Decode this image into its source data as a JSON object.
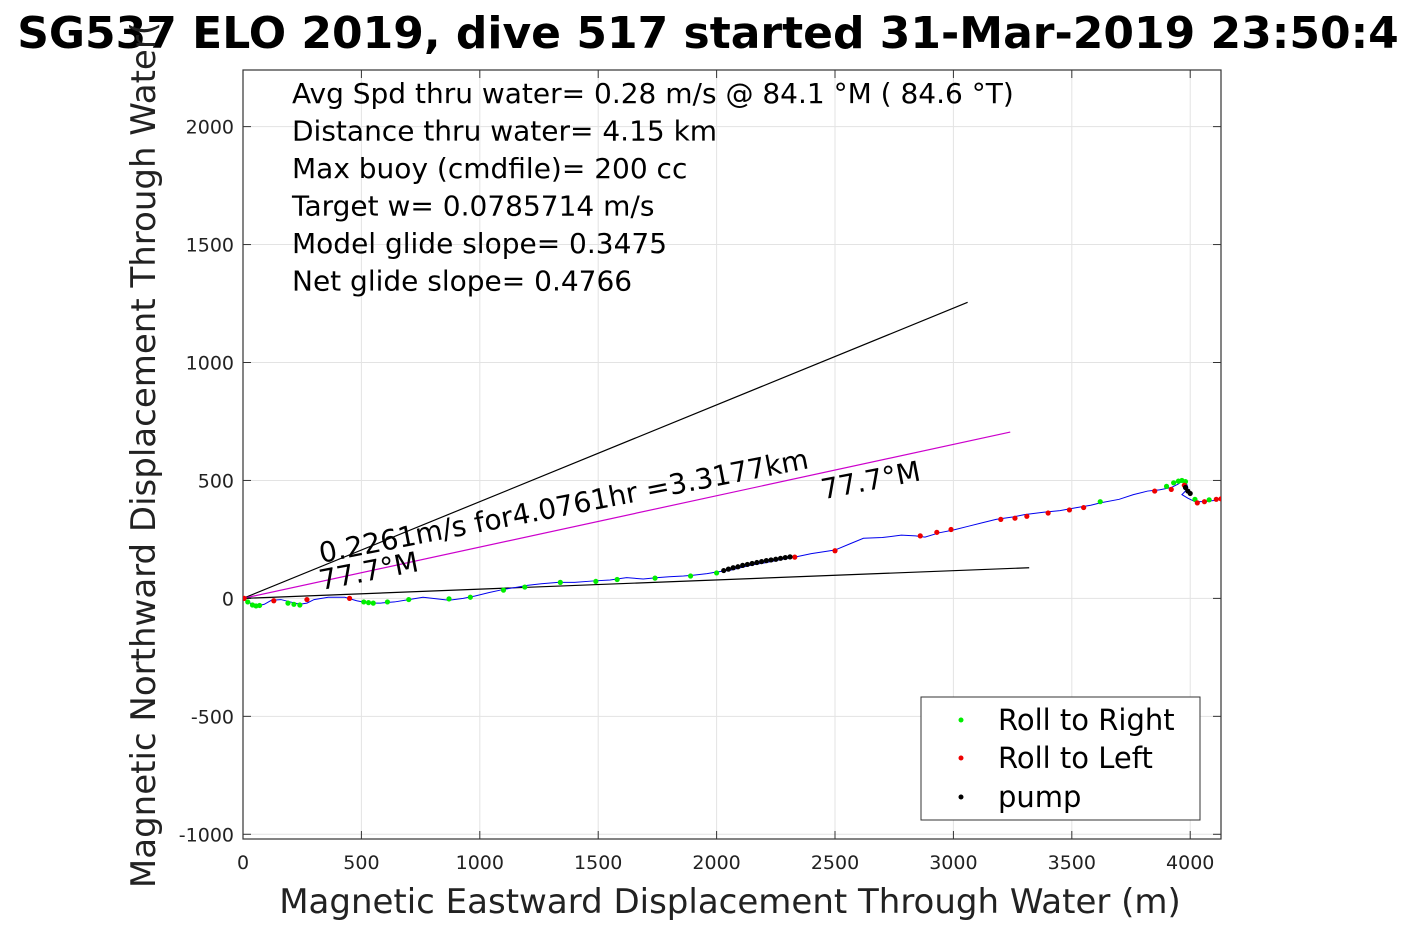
{
  "chart_data": {
    "type": "line",
    "title": "SG537 ELO 2019, dive 517 started 31-Mar-2019 23:50:4",
    "xlabel": "Magnetic Eastward Displacement Through Water (m)",
    "ylabel": "Magnetic Northward Displacement Through Water(",
    "xlim": [
      0,
      4130
    ],
    "ylim": [
      -1020,
      2240
    ],
    "xticks": [
      0,
      500,
      1000,
      1500,
      2000,
      2500,
      3000,
      3500,
      4000
    ],
    "yticks": [
      -1000,
      -500,
      0,
      500,
      1000,
      1500,
      2000
    ],
    "grid": true,
    "info_text": [
      "Avg Spd thru water=  0.28 m/s @  84.1 °M ( 84.6 °T)",
      "Distance thru water=  4.15 km",
      "Max buoy (cmdfile)= 200 cc",
      "Target w= 0.0785714 m/s",
      "Model glide slope= 0.3475",
      "Net glide slope= 0.4766"
    ],
    "annotations": [
      {
        "text": "0.2261m/s for4.0761hr =3.3177km",
        "x": 330,
        "y": 150,
        "rotation_deg": 11
      },
      {
        "text": "77.7°M",
        "x": 330,
        "y": 35,
        "rotation_deg": 11
      },
      {
        "text": "77.7°M",
        "x": 2450,
        "y": 420,
        "rotation_deg": 11
      }
    ],
    "reference_lines": [
      {
        "name": "upper",
        "color": "#000000",
        "x": [
          0,
          3060
        ],
        "y": [
          0,
          1255
        ]
      },
      {
        "name": "current",
        "color": "#cc00cc",
        "x": [
          0,
          3240
        ],
        "y": [
          0,
          705
        ]
      },
      {
        "name": "lower",
        "color": "#000000",
        "x": [
          0,
          3320
        ],
        "y": [
          0,
          130
        ]
      }
    ],
    "track": {
      "color": "#0000ee",
      "x": [
        0,
        30,
        60,
        90,
        120,
        160,
        200,
        240,
        270,
        300,
        360,
        430,
        480,
        530,
        580,
        640,
        700,
        760,
        820,
        870,
        930,
        980,
        1040,
        1100,
        1160,
        1200,
        1260,
        1330,
        1400,
        1480,
        1550,
        1620,
        1690,
        1750,
        1800,
        1860,
        1900,
        1960,
        2000,
        2060,
        2100,
        2150,
        2200,
        2250,
        2300,
        2330,
        2400,
        2500,
        2560,
        2620,
        2700,
        2780,
        2840,
        2880,
        2940,
        3000,
        3060,
        3120,
        3180,
        3250,
        3300,
        3380,
        3450,
        3520,
        3580,
        3620,
        3700,
        3760,
        3820,
        3870,
        3920,
        3950,
        3970,
        3985,
        3990,
        3975,
        3965,
        3990,
        4020,
        4060,
        4100,
        4130
      ],
      "y": [
        0,
        -20,
        -32,
        -25,
        -8,
        -5,
        -15,
        -25,
        -20,
        -5,
        5,
        5,
        -10,
        -20,
        -20,
        -15,
        -5,
        5,
        -2,
        -8,
        0,
        10,
        25,
        38,
        48,
        55,
        62,
        68,
        68,
        74,
        78,
        88,
        82,
        88,
        92,
        95,
        98,
        105,
        112,
        120,
        130,
        142,
        150,
        160,
        170,
        175,
        190,
        205,
        230,
        255,
        258,
        268,
        265,
        260,
        278,
        290,
        305,
        320,
        335,
        345,
        355,
        365,
        372,
        385,
        395,
        405,
        420,
        440,
        455,
        460,
        470,
        485,
        500,
        485,
        470,
        450,
        440,
        425,
        410,
        410,
        415,
        420
      ]
    },
    "series": [
      {
        "name": "Roll to Right",
        "color": "#00ee00",
        "x": [
          20,
          40,
          55,
          70,
          190,
          215,
          240,
          510,
          530,
          550,
          610,
          700,
          870,
          960,
          1100,
          1190,
          1340,
          1490,
          1580,
          1740,
          1890,
          2000,
          3620,
          3900,
          3930,
          3950,
          3965,
          3980,
          4020,
          4080
        ],
        "y": [
          -15,
          -28,
          -32,
          -30,
          -20,
          -25,
          -28,
          -15,
          -18,
          -20,
          -15,
          -5,
          -2,
          5,
          35,
          48,
          68,
          72,
          80,
          86,
          95,
          108,
          410,
          475,
          490,
          497,
          500,
          495,
          420,
          418
        ]
      },
      {
        "name": "Roll to Left",
        "color": "#ee0000",
        "x": [
          5,
          130,
          270,
          450,
          2330,
          2500,
          2860,
          2930,
          2990,
          3200,
          3260,
          3310,
          3400,
          3490,
          3550,
          3850,
          3920,
          3975,
          4030,
          4060,
          4110,
          4130
        ],
        "y": [
          0,
          -10,
          -5,
          0,
          175,
          202,
          265,
          280,
          292,
          335,
          340,
          348,
          362,
          375,
          385,
          455,
          462,
          480,
          405,
          410,
          420,
          422
        ]
      },
      {
        "name": "pump",
        "color": "#000000",
        "x": [
          2030,
          2050,
          2070,
          2090,
          2110,
          2130,
          2150,
          2170,
          2190,
          2210,
          2230,
          2250,
          2270,
          2290,
          2310,
          3980,
          3990,
          4000
        ],
        "y": [
          118,
          124,
          130,
          134,
          140,
          144,
          148,
          152,
          156,
          160,
          163,
          166,
          170,
          173,
          176,
          470,
          455,
          445
        ]
      }
    ],
    "legend": {
      "position": "bottom-right",
      "entries": [
        "Roll to Right",
        "Roll to Left",
        "pump"
      ]
    }
  }
}
